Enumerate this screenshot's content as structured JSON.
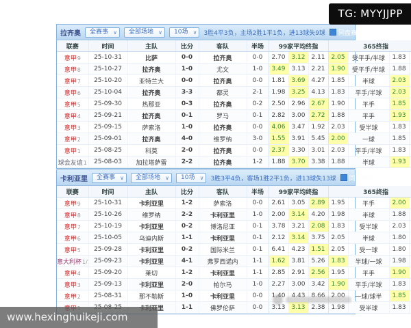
{
  "overlays": {
    "tg_label": "TG: MYYJJPP",
    "site_watermark": "www.hexinghuikeji.com"
  },
  "colors": {
    "panel_border": "#86b2e0",
    "win_red": "#d40000",
    "lose_blue": "#2244cc",
    "highlight_yellow": "#ffffaa",
    "badge_win_bg": "#e04a4a",
    "badge_lose_bg": "#4f6fd0"
  },
  "columns": [
    "联赛",
    "时间",
    "主队",
    "比分",
    "客队",
    "半场",
    "99家平均终指",
    "365终指"
  ],
  "tables": [
    {
      "team": "拉齐奥",
      "filters": [
        "全赛事",
        "全部场地",
        "10场"
      ],
      "summary": "3胜4平3负，主场2胜1平1负，进13球失9球",
      "checkbox_label": "同盘赛事",
      "rows": [
        {
          "lg": "意甲",
          "lgc": "serie",
          "n": "9",
          "d": "25-10-31",
          "h": "比萨",
          "hs": "draw",
          "s": "0-0",
          "a": "拉齐奥",
          "as": "draw",
          "ht": "0-0",
          "avg": [
            "2.70",
            "3.12",
            "2.11"
          ],
          "avg_hl": 1,
          "b365": [
            "2.05",
            "受平手/半球",
            "1.83"
          ],
          "b365_hl": 0,
          "res": "输"
        },
        {
          "lg": "意甲",
          "lgc": "serie",
          "n": "8",
          "d": "25-10-27",
          "h": "拉齐奥",
          "hs": "win",
          "s": "1-0",
          "a": "尤文",
          "as": "plain",
          "ht": "1-0",
          "avg": [
            "3.49",
            "3.13",
            "2.21"
          ],
          "avg_hl": 0,
          "b365": [
            "1.90",
            "受平手/半球",
            "1.88"
          ],
          "b365_hl": 0,
          "res": "赢"
        },
        {
          "lg": "意甲",
          "lgc": "serie",
          "n": "7",
          "d": "25-10-20",
          "h": "亚特兰大",
          "hs": "plain",
          "s": "0-0",
          "a": "拉齐奥",
          "as": "draw",
          "ht": "0-0",
          "avg": [
            "1.81",
            "3.69",
            "4.27"
          ],
          "avg_hl": 1,
          "b365": [
            "1.85",
            "半球",
            "2.03"
          ],
          "b365_hl": 2,
          "res": "赢"
        },
        {
          "lg": "意甲",
          "lgc": "serie",
          "n": "6",
          "d": "25-10-04",
          "h": "拉齐奥",
          "hs": "draw",
          "s": "3-3",
          "a": "都灵",
          "as": "plain",
          "ht": "2-1",
          "avg": [
            "1.98",
            "3.25",
            "4.13"
          ],
          "avg_hl": 1,
          "b365": [
            "1.83",
            "平手/半球",
            "2.03"
          ],
          "b365_hl": 2,
          "res": "输"
        },
        {
          "lg": "意甲",
          "lgc": "serie",
          "n": "5",
          "d": "25-09-30",
          "h": "热那亚",
          "hs": "plain",
          "s": "0-3",
          "a": "拉齐奥",
          "as": "win",
          "ht": "0-2",
          "avg": [
            "2.50",
            "2.96",
            "2.67"
          ],
          "avg_hl": 2,
          "b365": [
            "1.90",
            "平手",
            "1.85"
          ],
          "b365_hl": 2,
          "res": "赢"
        },
        {
          "lg": "意甲",
          "lgc": "serie",
          "n": "4",
          "d": "25-09-21",
          "h": "拉齐奥",
          "hs": "lose",
          "s": "0-1",
          "a": "罗马",
          "as": "plain",
          "ht": "0-1",
          "avg": [
            "2.82",
            "3.00",
            "2.72"
          ],
          "avg_hl": 2,
          "b365": [
            "1.88",
            "平手",
            "1.93"
          ],
          "b365_hl": 2,
          "res": "输"
        },
        {
          "lg": "意甲",
          "lgc": "serie",
          "n": "3",
          "d": "25-09-15",
          "h": "萨索洛",
          "hs": "plain",
          "s": "1-0",
          "a": "拉齐奥",
          "as": "lose",
          "ht": "0-0",
          "avg": [
            "4.06",
            "3.47",
            "1.92"
          ],
          "avg_hl": 0,
          "b365": [
            "2.03",
            "受半球",
            "1.83"
          ],
          "b365_hl": -1,
          "res": "输"
        },
        {
          "lg": "意甲",
          "lgc": "serie",
          "n": "2",
          "d": "25-09-01",
          "h": "拉齐奥",
          "hs": "win",
          "s": "4-0",
          "a": "维罗纳",
          "as": "plain",
          "ht": "3-0",
          "avg": [
            "1.55",
            "3.91",
            "5.45"
          ],
          "avg_hl": 0,
          "b365": [
            "2.00",
            "一球",
            "1.85"
          ],
          "b365_hl": 0,
          "res": "赢"
        },
        {
          "lg": "意甲",
          "lgc": "serie",
          "n": "1",
          "d": "25-08-25",
          "h": "科莫",
          "hs": "plain",
          "s": "2-0",
          "a": "拉齐奥",
          "as": "lose",
          "ht": "0-0",
          "avg": [
            "2.37",
            "3.30",
            "3.01"
          ],
          "avg_hl": 0,
          "b365": [
            "2.03",
            "平手/半球",
            "1.83"
          ],
          "b365_hl": -1,
          "res": "输"
        },
        {
          "lg": "球会友谊",
          "lgc": "friendly",
          "n": "1",
          "d": "25-08-03",
          "h": "加拉塔萨雷",
          "hs": "plain",
          "s": "2-2",
          "a": "拉齐奥",
          "as": "draw",
          "ht": "1-2",
          "avg": [
            "1.88",
            "3.70",
            "3.38"
          ],
          "avg_hl": 1,
          "b365": [
            "1.88",
            "半球",
            "1.93"
          ],
          "b365_hl": 2,
          "res": "赢"
        }
      ]
    },
    {
      "team": "卡利亚里",
      "filters": [
        "全赛事",
        "全部场地",
        "10场"
      ],
      "summary": "3胜3平4负，客场1胜2平1负，进13球失13球",
      "checkbox_label": "同盘赛事",
      "rows": [
        {
          "lg": "意甲",
          "lgc": "serie",
          "n": "9",
          "d": "25-10-31",
          "h": "卡利亚里",
          "hs": "lose",
          "s": "1-2",
          "a": "萨索洛",
          "as": "plain",
          "ht": "0-0",
          "avg": [
            "2.61",
            "3.05",
            "2.89"
          ],
          "avg_hl": 2,
          "b365": [
            "1.95",
            "平手",
            "2.00"
          ],
          "b365_hl": 2,
          "res": "输"
        },
        {
          "lg": "意甲",
          "lgc": "serie",
          "n": "8",
          "d": "25-10-26",
          "h": "维罗纳",
          "hs": "plain",
          "s": "2-2",
          "a": "卡利亚里",
          "as": "draw",
          "ht": "1-0",
          "avg": [
            "2.00",
            "3.14",
            "4.20"
          ],
          "avg_hl": 1,
          "b365": [
            "1.98",
            "半球",
            "1.88"
          ],
          "b365_hl": -1,
          "res": "赢"
        },
        {
          "lg": "意甲",
          "lgc": "serie",
          "n": "7",
          "d": "25-10-19",
          "h": "卡利亚里",
          "hs": "lose",
          "s": "0-2",
          "a": "博洛尼亚",
          "as": "plain",
          "ht": "0-1",
          "avg": [
            "3.78",
            "3.21",
            "2.08"
          ],
          "avg_hl": 2,
          "b365": [
            "1.83",
            "受半球",
            "2.03"
          ],
          "b365_hl": -1,
          "res": "输"
        },
        {
          "lg": "意甲",
          "lgc": "serie",
          "n": "6",
          "d": "25-10-05",
          "h": "乌迪内斯",
          "hs": "plain",
          "s": "1-1",
          "a": "卡利亚里",
          "as": "draw",
          "ht": "0-1",
          "avg": [
            "2.12",
            "3.14",
            "3.75"
          ],
          "avg_hl": 1,
          "b365": [
            "2.05",
            "半球",
            "1.80"
          ],
          "b365_hl": -1,
          "res": "赢"
        },
        {
          "lg": "意甲",
          "lgc": "serie",
          "n": "5",
          "d": "25-09-28",
          "h": "卡利亚里",
          "hs": "lose",
          "s": "0-2",
          "a": "国际米兰",
          "as": "plain",
          "ht": "0-1",
          "avg": [
            "6.41",
            "4.23",
            "1.51"
          ],
          "avg_hl": 2,
          "b365": [
            "2.05",
            "受一球",
            "1.80"
          ],
          "b365_hl": -1,
          "res": "输"
        },
        {
          "lg": "意大利杯",
          "lgc": "cup",
          "n": "1/16",
          "d": "25-09-23",
          "h": "卡利亚里",
          "hs": "win",
          "s": "4-1",
          "a": "弗罗西诺内",
          "as": "plain",
          "ht": "1-1",
          "avg": [
            "1.62",
            "3.81",
            "5.26"
          ],
          "avg_hl": 0,
          "b365": [
            "1.83",
            "半球/一球",
            "1.98"
          ],
          "b365_hl": 0,
          "res": "赢"
        },
        {
          "lg": "意甲",
          "lgc": "serie",
          "n": "4",
          "d": "25-09-20",
          "h": "莱切",
          "hs": "plain",
          "s": "1-2",
          "a": "卡利亚里",
          "as": "win",
          "ht": "1-1",
          "avg": [
            "2.85",
            "2.91",
            "2.56"
          ],
          "avg_hl": 2,
          "b365": [
            "1.95",
            "平手",
            "1.90"
          ],
          "b365_hl": 2,
          "res": "赢"
        },
        {
          "lg": "意甲",
          "lgc": "serie",
          "n": "3",
          "d": "25-09-13",
          "h": "卡利亚里",
          "hs": "win",
          "s": "2-0",
          "a": "帕尔马",
          "as": "plain",
          "ht": "1-0",
          "avg": [
            "2.27",
            "3.00",
            "3.42"
          ],
          "avg_hl": -1,
          "b365": [
            "1.90",
            "平手/半球",
            "1.83"
          ],
          "b365_hl": 0,
          "res": "赢"
        },
        {
          "lg": "意甲",
          "lgc": "serie",
          "n": "2",
          "d": "25-08-31",
          "h": "那不勒斯",
          "hs": "plain",
          "s": "1-0",
          "a": "卡利亚里",
          "as": "lose",
          "ht": "0-0",
          "avg": [
            "1.40",
            "4.43",
            "8.66"
          ],
          "avg_hl": -1,
          "b365": [
            "2.00",
            "一球/球半",
            "1.85"
          ],
          "b365_hl": 2,
          "res": "输"
        },
        {
          "lg": "意甲",
          "lgc": "serie",
          "n": "1",
          "d": "25-08-25",
          "h": "卡利亚里",
          "hs": "draw",
          "s": "1-1",
          "a": "佛罗伦萨",
          "as": "plain",
          "ht": "0-0",
          "avg": [
            "3.13",
            "3.13",
            "2.38"
          ],
          "avg_hl": 1,
          "b365": [
            "1.98",
            "受半球",
            "1.83"
          ],
          "b365_hl": -1,
          "res": "赢"
        }
      ]
    }
  ]
}
